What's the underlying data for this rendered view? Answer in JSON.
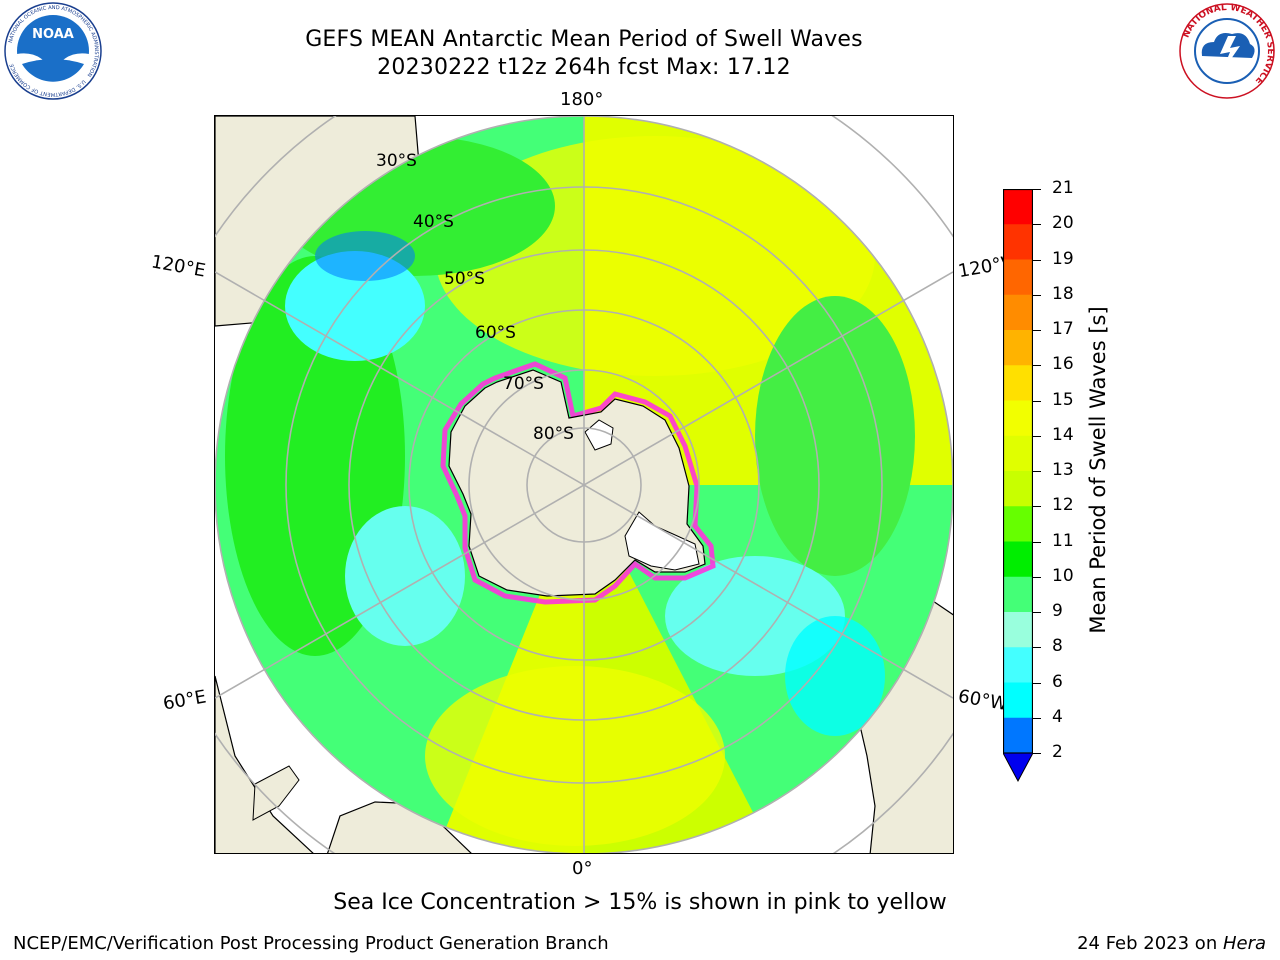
{
  "header": {
    "title_line1": "GEFS MEAN Antarctic Mean Period of Swell Waves",
    "title_line2": "20230222 t12z 264h fcst   Max: 17.12"
  },
  "logos": {
    "noaa_text": "NOAA",
    "noaa_ring_text": "NATIONAL OCEANIC AND ATMOSPHERIC ADMINISTRATION",
    "noaa_ring_text_bottom": "U.S. DEPARTMENT OF COMMERCE",
    "nws_ring_text": "NATIONAL WEATHER SERVICE"
  },
  "map": {
    "projection": "south-polar-stereographic",
    "longitude_labels": {
      "top": "180°",
      "bottom": "0°",
      "upper_left": "120°E",
      "lower_left": "60°E",
      "upper_right": "120°W",
      "lower_right": "60°W"
    },
    "latitude_labels": [
      "30°S",
      "40°S",
      "50°S",
      "60°S",
      "70°S",
      "80°S"
    ],
    "colors": {
      "land": "#eeecda",
      "grid": "#b0b0b0",
      "ice_edge": "#ff33dd"
    }
  },
  "colorbar": {
    "label": "Mean Period of Swell Waves [s]",
    "ticks": [
      "21",
      "20",
      "19",
      "18",
      "17",
      "16",
      "15",
      "14",
      "13",
      "12",
      "11",
      "10",
      "9",
      "8",
      "6",
      "4",
      "2"
    ],
    "colors": [
      "#ff0000",
      "#ff3300",
      "#ff6600",
      "#ff8c00",
      "#ffb300",
      "#ffe000",
      "#f2ff00",
      "#e0ff00",
      "#c8ff00",
      "#66ff00",
      "#00ee00",
      "#44ff77",
      "#99ffdd",
      "#44ffff",
      "#00ffff",
      "#0077ff",
      "#0000ee"
    ],
    "extend_color": "#0000ee"
  },
  "note": "Sea Ice Concentration > 15% is shown in pink to yellow",
  "footer": {
    "left": "NCEP/EMC/Verification Post Processing Product Generation Branch",
    "right_date": "24 Feb 2023 on ",
    "right_machine": "Hera"
  }
}
